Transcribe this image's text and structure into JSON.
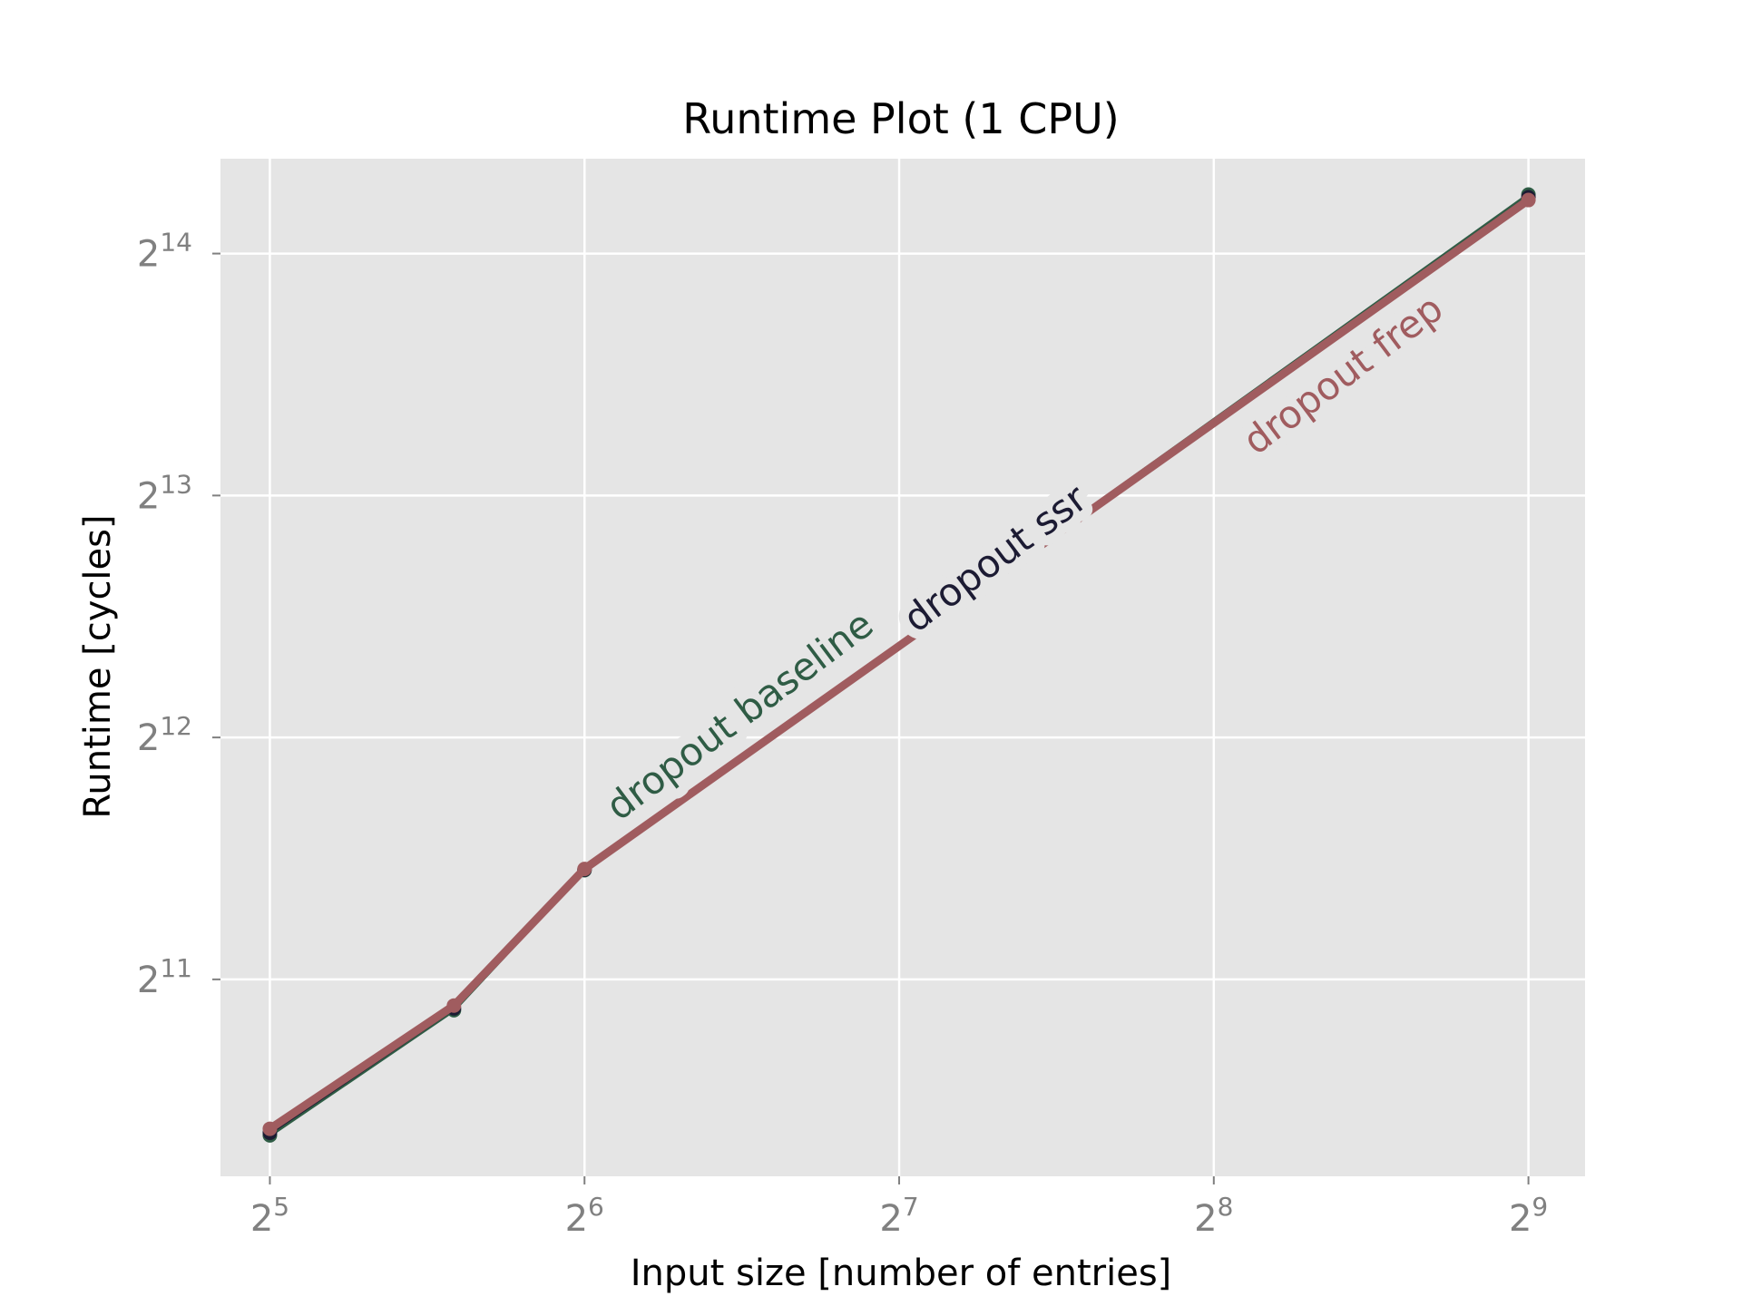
{
  "chart_data": {
    "type": "line",
    "title": "Runtime Plot (1 CPU)",
    "xlabel": "Input size [number of entries]",
    "ylabel": "Runtime [cycles]",
    "xscale": "log2",
    "yscale": "log2",
    "xlim": [
      28.7,
      580
    ],
    "ylim": [
      1165,
      21500
    ],
    "grid": true,
    "background": "#e5e5e5",
    "xticks": [
      {
        "value": 32,
        "base": "2",
        "exp": "5"
      },
      {
        "value": 64,
        "base": "2",
        "exp": "6"
      },
      {
        "value": 128,
        "base": "2",
        "exp": "7"
      },
      {
        "value": 256,
        "base": "2",
        "exp": "8"
      },
      {
        "value": 512,
        "base": "2",
        "exp": "9"
      }
    ],
    "yticks": [
      {
        "value": 2048,
        "base": "2",
        "exp": "11"
      },
      {
        "value": 4096,
        "base": "2",
        "exp": "12"
      },
      {
        "value": 8192,
        "base": "2",
        "exp": "13"
      },
      {
        "value": 16384,
        "base": "2",
        "exp": "14"
      }
    ],
    "series": [
      {
        "name": "dropout baseline",
        "color": "#2f5c45",
        "x": [
          32,
          48,
          64,
          512
        ],
        "y": [
          1310,
          1875,
          2800,
          19400
        ]
      },
      {
        "name": "dropout ssr",
        "color": "#1c1b33",
        "x": [
          32,
          48,
          64,
          512
        ],
        "y": [
          1320,
          1885,
          2805,
          19250
        ]
      },
      {
        "name": "dropout frep",
        "color": "#a05c5f",
        "x": [
          32,
          48,
          64,
          512
        ],
        "y": [
          1335,
          1900,
          2810,
          19100
        ]
      }
    ],
    "inline_labels": [
      {
        "series": 0,
        "x": 90,
        "y": 4370
      },
      {
        "series": 1,
        "x": 158,
        "y": 6850
      },
      {
        "series": 2,
        "x": 340,
        "y": 11600
      }
    ]
  }
}
